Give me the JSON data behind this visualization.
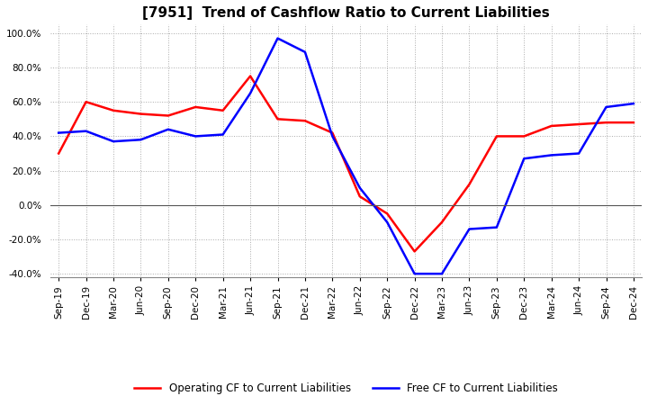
{
  "title": "[7951]  Trend of Cashflow Ratio to Current Liabilities",
  "title_fontsize": 11,
  "x_labels": [
    "Sep-19",
    "Dec-19",
    "Mar-20",
    "Jun-20",
    "Sep-20",
    "Dec-20",
    "Mar-21",
    "Jun-21",
    "Sep-21",
    "Dec-21",
    "Mar-22",
    "Jun-22",
    "Sep-22",
    "Dec-22",
    "Mar-23",
    "Jun-23",
    "Sep-23",
    "Dec-23",
    "Mar-24",
    "Jun-24",
    "Sep-24",
    "Dec-24"
  ],
  "operating_cf": [
    0.3,
    0.6,
    0.55,
    0.53,
    0.52,
    0.57,
    0.55,
    0.75,
    0.5,
    0.49,
    0.42,
    0.05,
    -0.05,
    -0.27,
    -0.1,
    0.12,
    0.4,
    0.4,
    0.46,
    0.47,
    0.48,
    0.48
  ],
  "free_cf": [
    0.42,
    0.43,
    0.37,
    0.38,
    0.44,
    0.4,
    0.41,
    0.65,
    0.97,
    0.89,
    0.4,
    0.1,
    -0.1,
    -0.4,
    -0.4,
    -0.14,
    -0.13,
    0.27,
    0.29,
    0.3,
    0.57,
    0.59
  ],
  "operating_color": "#ff0000",
  "free_color": "#0000ff",
  "ylim": [
    -0.42,
    1.05
  ],
  "yticks": [
    -0.4,
    -0.2,
    0.0,
    0.2,
    0.4,
    0.6,
    0.8,
    1.0
  ],
  "grid_color": "#aaaaaa",
  "background_color": "#ffffff",
  "legend_operating": "Operating CF to Current Liabilities",
  "legend_free": "Free CF to Current Liabilities"
}
